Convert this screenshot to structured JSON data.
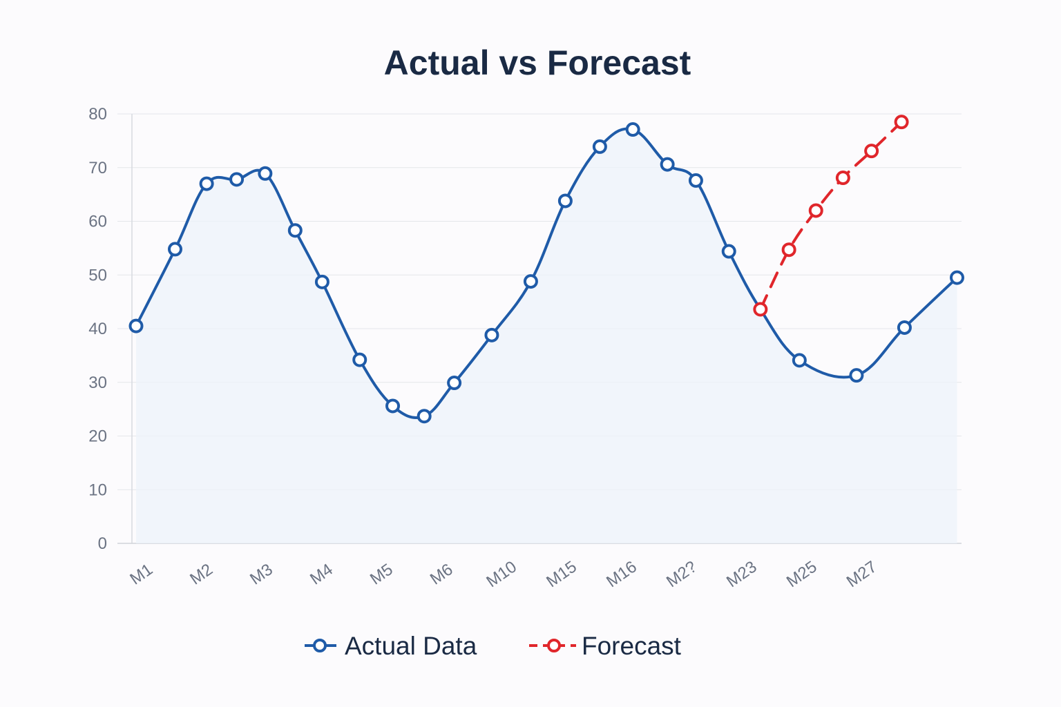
{
  "chart_data": {
    "type": "line",
    "title": "Actual vs Forecast",
    "xlabel": "",
    "ylabel": "",
    "ylim": [
      0,
      80
    ],
    "yticks": [
      0,
      10,
      20,
      30,
      40,
      50,
      60,
      70,
      80
    ],
    "xlim": [
      0,
      27.5
    ],
    "x_tick_labels": [
      {
        "label": "M1",
        "x": 0
      },
      {
        "label": "M2",
        "x": 2
      },
      {
        "label": "M3",
        "x": 4
      },
      {
        "label": "M4",
        "x": 6
      },
      {
        "label": "M5",
        "x": 8
      },
      {
        "label": "M6",
        "x": 10
      },
      {
        "label": "M10",
        "x": 12
      },
      {
        "label": "M15",
        "x": 14
      },
      {
        "label": "M16",
        "x": 16
      },
      {
        "label": "M2?",
        "x": 18
      },
      {
        "label": "M23",
        "x": 20
      },
      {
        "label": "M25",
        "x": 22
      },
      {
        "label": "M27",
        "x": 24
      }
    ],
    "grid": true,
    "legend_position": "bottom-center",
    "series": [
      {
        "name": "Actual Data",
        "color": "#1f5ba8",
        "style": "solid",
        "area_fill": true,
        "points": [
          {
            "x": 0,
            "y": 40.5
          },
          {
            "x": 1.3,
            "y": 54.8
          },
          {
            "x": 2.35,
            "y": 67
          },
          {
            "x": 3.35,
            "y": 67.8
          },
          {
            "x": 4.3,
            "y": 68.9
          },
          {
            "x": 5.3,
            "y": 58.3
          },
          {
            "x": 6.2,
            "y": 48.7
          },
          {
            "x": 7.45,
            "y": 34.2
          },
          {
            "x": 8.55,
            "y": 25.6
          },
          {
            "x": 9.6,
            "y": 23.7
          },
          {
            "x": 10.6,
            "y": 29.9
          },
          {
            "x": 11.85,
            "y": 38.8
          },
          {
            "x": 13.15,
            "y": 48.8
          },
          {
            "x": 14.3,
            "y": 63.8
          },
          {
            "x": 15.45,
            "y": 73.9
          },
          {
            "x": 16.55,
            "y": 77.1
          },
          {
            "x": 17.7,
            "y": 70.6
          },
          {
            "x": 18.65,
            "y": 67.6
          },
          {
            "x": 19.75,
            "y": 54.4
          },
          {
            "x": 20.8,
            "y": 43.6
          },
          {
            "x": 22.1,
            "y": 34.1
          },
          {
            "x": 24.0,
            "y": 31.3
          },
          {
            "x": 25.6,
            "y": 40.2
          },
          {
            "x": 27.35,
            "y": 49.5
          }
        ]
      },
      {
        "name": "Forecast",
        "color": "#e0262b",
        "style": "dashed",
        "area_fill": false,
        "points": [
          {
            "x": 20.8,
            "y": 43.6
          },
          {
            "x": 21.75,
            "y": 54.7
          },
          {
            "x": 22.65,
            "y": 62
          },
          {
            "x": 23.55,
            "y": 68.1
          },
          {
            "x": 24.5,
            "y": 73.1
          },
          {
            "x": 25.5,
            "y": 78.5
          }
        ]
      }
    ]
  }
}
